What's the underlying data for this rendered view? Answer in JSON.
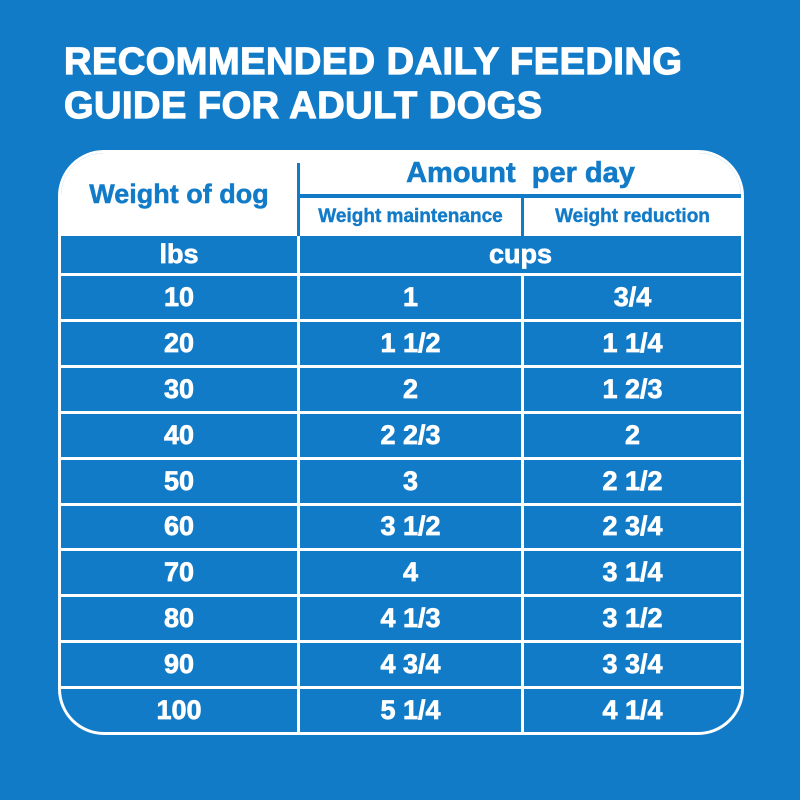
{
  "colors": {
    "background_blue": "#127BC8",
    "text_on_blue": "#FFFFFF",
    "text_on_white": "#127BC8"
  },
  "title": {
    "line1": "RECOMMENDED DAILY FEEDING",
    "line2": "GUIDE FOR ADULT DOGS"
  },
  "table": {
    "weight_column_header": "Weight of dog",
    "amount_header": "Amount  per day",
    "sub_headers": {
      "maintenance": "Weight maintenance",
      "reduction": "Weight reduction"
    },
    "units": {
      "weight": "lbs",
      "amount": "cups"
    },
    "rows": [
      {
        "weight": "10",
        "maintenance": "1",
        "reduction": "3/4"
      },
      {
        "weight": "20",
        "maintenance": "1 1/2",
        "reduction": "1 1/4"
      },
      {
        "weight": "30",
        "maintenance": "2",
        "reduction": "1 2/3"
      },
      {
        "weight": "40",
        "maintenance": "2 2/3",
        "reduction": "2"
      },
      {
        "weight": "50",
        "maintenance": "3",
        "reduction": "2 1/2"
      },
      {
        "weight": "60",
        "maintenance": "3 1/2",
        "reduction": "2 3/4"
      },
      {
        "weight": "70",
        "maintenance": "4",
        "reduction": "3 1/4"
      },
      {
        "weight": "80",
        "maintenance": "4 1/3",
        "reduction": "3 1/2"
      },
      {
        "weight": "90",
        "maintenance": "4 3/4",
        "reduction": "3 3/4"
      },
      {
        "weight": "100",
        "maintenance": "5 1/4",
        "reduction": "4 1/4"
      }
    ]
  }
}
